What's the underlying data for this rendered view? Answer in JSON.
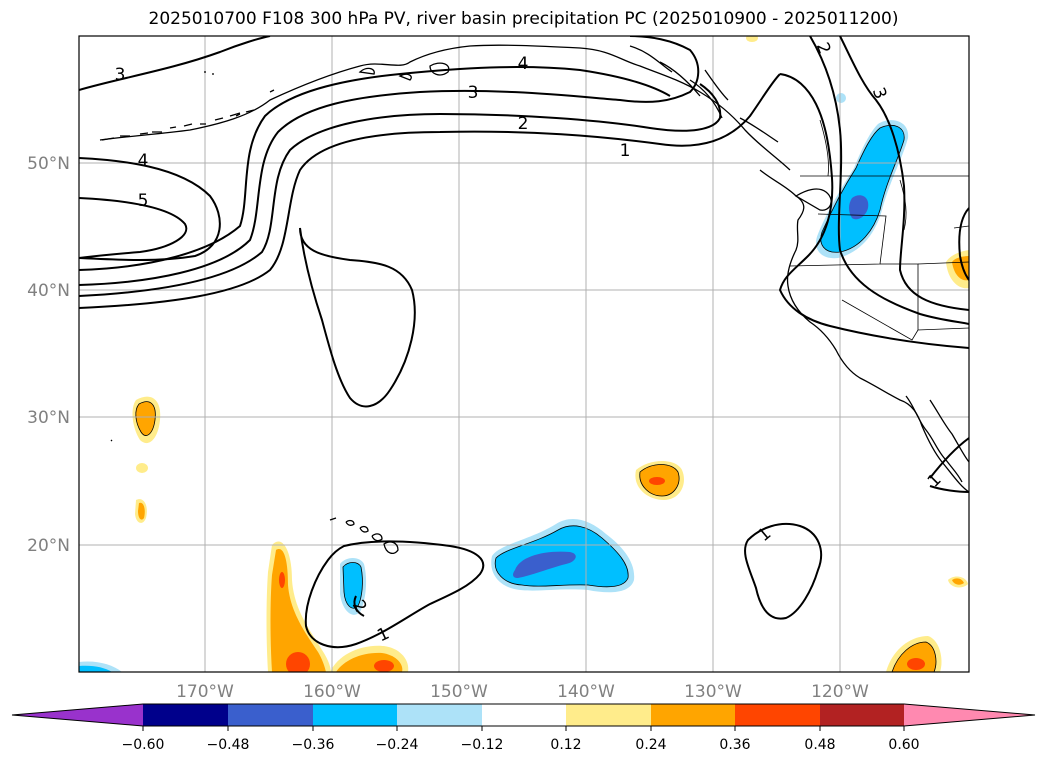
{
  "title": "2025010700 F108 300 hPa PV, river basin precipitation PC (2025010900 - 2025011200)",
  "map": {
    "lon_labels": [
      "170°W",
      "160°W",
      "150°W",
      "140°W",
      "130°W",
      "120°W"
    ],
    "lat_labels": [
      "50°N",
      "40°N",
      "30°N",
      "20°N"
    ],
    "pv_contour_labels": [
      "3",
      "4",
      "5",
      "4",
      "3",
      "2",
      "1",
      "2",
      "3",
      "1",
      "1",
      "1",
      "2",
      "1"
    ]
  },
  "colorbar": {
    "colors": [
      "#9932CC",
      "#00008B",
      "#3A5FCD",
      "#00BFFF",
      "#ADE2F8",
      "#FFFFFF",
      "#FFEC8B",
      "#FFA500",
      "#FF4500",
      "#B22222",
      "#FF89B0"
    ],
    "tick_labels": [
      "−0.60",
      "−0.48",
      "−0.36",
      "−0.24",
      "−0.12",
      "0.12",
      "0.24",
      "0.36",
      "0.48",
      "0.60"
    ]
  }
}
